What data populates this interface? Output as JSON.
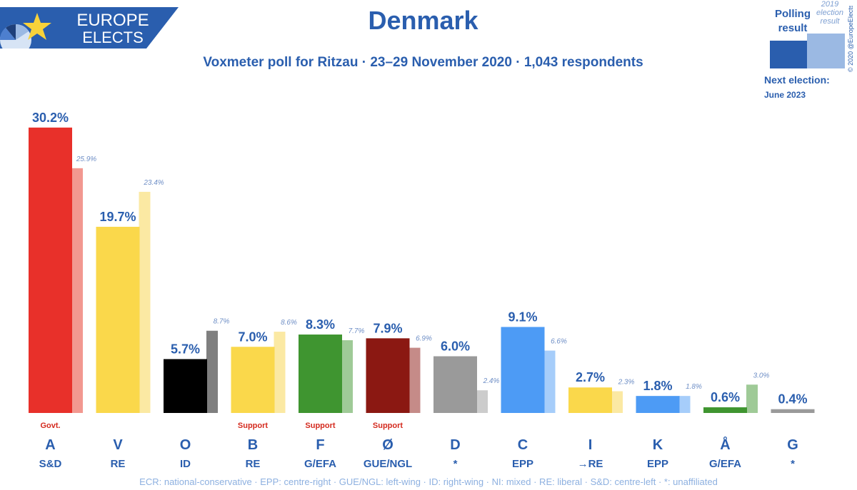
{
  "header": {
    "logo_line1": "EUROPE",
    "logo_line2": "ELECTS",
    "title": "Denmark",
    "subtitle": "Voxmeter poll for Ritzau · 23–29 November 2020 · 1,043 respondents"
  },
  "legend": {
    "polling_label": "Polling result",
    "election_label": "2019 election result",
    "next_election_label": "Next election:",
    "next_election_date": "June 2023",
    "copyright": "© 2020 @EuropeElects",
    "polling_color": "#2a5eae",
    "election_color": "#9bb9e3"
  },
  "footnote": "ECR: national-conservative · EPP: centre-right · GUE/NGL: left-wing · ID: right-wing · NI: mixed · RE: liberal · S&D: centre-left · *: unaffiliated",
  "chart_data": {
    "type": "bar",
    "title": "Denmark",
    "ylim": [
      0,
      30.2
    ],
    "series": [
      {
        "name": "Polling result",
        "values": [
          30.2,
          19.7,
          5.7,
          7.0,
          8.3,
          7.9,
          6.0,
          9.1,
          2.7,
          1.8,
          0.6,
          0.4
        ]
      },
      {
        "name": "2019 election result",
        "values": [
          25.9,
          23.4,
          8.7,
          8.6,
          7.7,
          6.9,
          2.4,
          6.6,
          2.3,
          1.8,
          3.0,
          null
        ]
      }
    ],
    "categories": [
      "A",
      "V",
      "O",
      "B",
      "F",
      "Ø",
      "D",
      "C",
      "I",
      "K",
      "Å",
      "G"
    ],
    "parties": [
      {
        "letter": "A",
        "group": "S&D",
        "poll": 30.2,
        "prev": 25.9,
        "status": "Govt.",
        "color": "#e8302a",
        "prev_color": "#f29890",
        "poll_label": "30.2%",
        "prev_label": "25.9%"
      },
      {
        "letter": "V",
        "group": "RE",
        "poll": 19.7,
        "prev": 23.4,
        "status": "",
        "color": "#fad84b",
        "prev_color": "#fbe9a3",
        "poll_label": "19.7%",
        "prev_label": "23.4%"
      },
      {
        "letter": "O",
        "group": "ID",
        "poll": 5.7,
        "prev": 8.7,
        "status": "",
        "color": "#000000",
        "prev_color": "#7f7f7f",
        "poll_label": "5.7%",
        "prev_label": "8.7%"
      },
      {
        "letter": "B",
        "group": "RE",
        "poll": 7.0,
        "prev": 8.6,
        "status": "Support",
        "color": "#fad84b",
        "prev_color": "#fbe9a3",
        "poll_label": "7.0%",
        "prev_label": "8.6%"
      },
      {
        "letter": "F",
        "group": "G/EFA",
        "poll": 8.3,
        "prev": 7.7,
        "status": "Support",
        "color": "#3f9530",
        "prev_color": "#9fca97",
        "poll_label": "8.3%",
        "prev_label": "7.7%"
      },
      {
        "letter": "Ø",
        "group": "GUE/NGL",
        "poll": 7.9,
        "prev": 6.9,
        "status": "Support",
        "color": "#8b1812",
        "prev_color": "#c58b88",
        "poll_label": "7.9%",
        "prev_label": "6.9%"
      },
      {
        "letter": "D",
        "group": "*",
        "poll": 6.0,
        "prev": 2.4,
        "status": "",
        "color": "#9a9a9a",
        "prev_color": "#cccccc",
        "poll_label": "6.0%",
        "prev_label": "2.4%"
      },
      {
        "letter": "C",
        "group": "EPP",
        "poll": 9.1,
        "prev": 6.6,
        "status": "",
        "color": "#4d9bf5",
        "prev_color": "#a6cdfa",
        "poll_label": "9.1%",
        "prev_label": "6.6%"
      },
      {
        "letter": "I",
        "group": "→RE",
        "poll": 2.7,
        "prev": 2.3,
        "status": "",
        "color": "#fad84b",
        "prev_color": "#fbe9a3",
        "poll_label": "2.7%",
        "prev_label": "2.3%"
      },
      {
        "letter": "K",
        "group": "EPP",
        "poll": 1.8,
        "prev": 1.8,
        "status": "",
        "color": "#4d9bf5",
        "prev_color": "#a6cdfa",
        "poll_label": "1.8%",
        "prev_label": "1.8%"
      },
      {
        "letter": "Å",
        "group": "G/EFA",
        "poll": 0.6,
        "prev": 3.0,
        "status": "",
        "color": "#3f9530",
        "prev_color": "#9fca97",
        "poll_label": "0.6%",
        "prev_label": "3.0%"
      },
      {
        "letter": "G",
        "group": "*",
        "poll": 0.4,
        "prev": null,
        "status": "",
        "color": "#9a9a9a",
        "prev_color": "#cccccc",
        "poll_label": "0.4%",
        "prev_label": ""
      }
    ],
    "status_color": "#d42a1e",
    "label_color": "#2a5eae",
    "prev_label_color": "#6f8fc6"
  }
}
